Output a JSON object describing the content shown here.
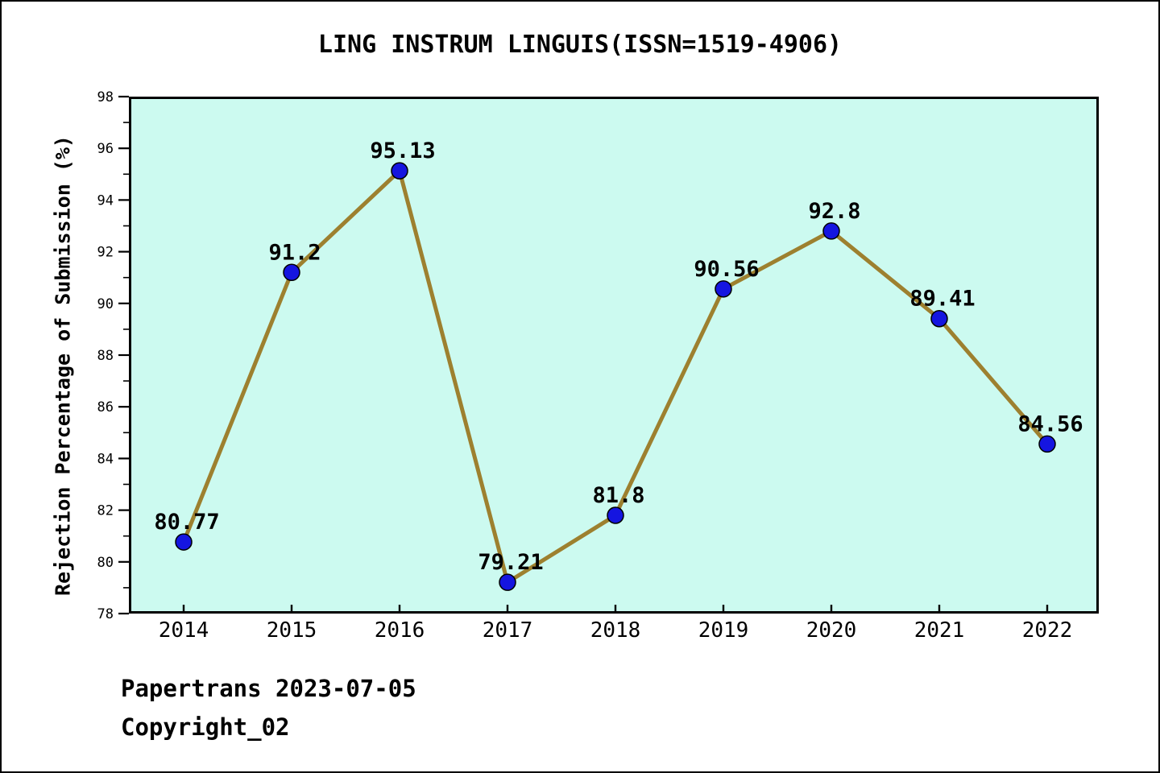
{
  "chart_data": {
    "type": "line",
    "title": "LING INSTRUM LINGUIS(ISSN=1519-4906)",
    "xlabel": "",
    "ylabel": "Rejection Percentage of Submission (%)",
    "categories": [
      "2014",
      "2015",
      "2016",
      "2017",
      "2018",
      "2019",
      "2020",
      "2021",
      "2022"
    ],
    "values": [
      80.77,
      91.2,
      95.13,
      79.21,
      81.8,
      90.56,
      92.8,
      89.41,
      84.56
    ],
    "point_labels": [
      "80.77",
      "91.2",
      "95.13",
      "79.21",
      "81.8",
      "90.56",
      "92.8",
      "89.41",
      "84.56"
    ],
    "ylim": [
      78,
      98
    ],
    "yticks": [
      78,
      80,
      82,
      84,
      86,
      88,
      90,
      92,
      94,
      96,
      98
    ],
    "yticks_minor": [
      79,
      81,
      83,
      85,
      87,
      89,
      91,
      93,
      95,
      97
    ],
    "grid": false,
    "legend": "none",
    "colors": {
      "plot_bg": "#ccfaf0",
      "line": "#9d802f",
      "marker": "#1515e0",
      "marker_edge": "#000000",
      "axis": "#000000",
      "text": "#000000"
    }
  },
  "footer": {
    "line1": "Papertrans 2023-07-05",
    "line2": "Copyright_02"
  }
}
